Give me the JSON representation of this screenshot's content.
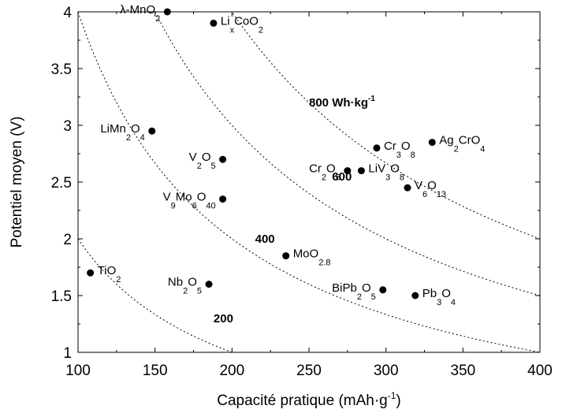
{
  "chart_data": {
    "type": "scatter",
    "xlabel": "Capacité pratique (mAh·g",
    "xlabel_sup": "-1",
    "xlabel_tail": ")",
    "ylabel": "Potentiel moyen (V)",
    "xlim": [
      100,
      400
    ],
    "ylim": [
      1,
      4
    ],
    "xticks": [
      100,
      150,
      200,
      250,
      300,
      350,
      400
    ],
    "yticks": [
      1,
      1.5,
      2,
      2.5,
      3,
      3.5,
      4
    ],
    "ytick_labels": [
      "1",
      "1.5",
      "2",
      "2.5",
      "3",
      "3.5",
      "4"
    ],
    "grid": false,
    "points": [
      {
        "x": 158,
        "y": 4.0,
        "segments": [
          [
            "λ-MnO",
            0
          ],
          [
            "2",
            1
          ]
        ],
        "anchor": "end"
      },
      {
        "x": 188,
        "y": 3.9,
        "segments": [
          [
            "Li",
            0
          ],
          [
            "x",
            1
          ],
          [
            "CoO",
            0
          ],
          [
            "2",
            1
          ]
        ],
        "anchor": "start"
      },
      {
        "x": 148,
        "y": 2.95,
        "segments": [
          [
            "LiMn",
            0
          ],
          [
            "2",
            1
          ],
          [
            "O",
            0
          ],
          [
            "4",
            1
          ]
        ],
        "anchor": "end"
      },
      {
        "x": 194,
        "y": 2.7,
        "segments": [
          [
            "V",
            0
          ],
          [
            "2",
            1
          ],
          [
            "O",
            0
          ],
          [
            "5",
            1
          ]
        ],
        "anchor": "end"
      },
      {
        "x": 194,
        "y": 2.35,
        "segments": [
          [
            "V",
            0
          ],
          [
            "9",
            1
          ],
          [
            "Mo",
            0
          ],
          [
            "6",
            1
          ],
          [
            "O",
            0
          ],
          [
            "40",
            1
          ]
        ],
        "anchor": "end"
      },
      {
        "x": 108,
        "y": 1.7,
        "segments": [
          [
            "TiO",
            0
          ],
          [
            "2",
            1
          ]
        ],
        "anchor": "start"
      },
      {
        "x": 185,
        "y": 1.6,
        "segments": [
          [
            "Nb",
            0
          ],
          [
            "2",
            1
          ],
          [
            "O",
            0
          ],
          [
            "5",
            1
          ]
        ],
        "anchor": "end"
      },
      {
        "x": 235,
        "y": 1.85,
        "segments": [
          [
            "MoO",
            0
          ],
          [
            "2.8",
            1
          ]
        ],
        "anchor": "start"
      },
      {
        "x": 275,
        "y": 2.6,
        "segments": [
          [
            "Cr",
            0
          ],
          [
            "2",
            1
          ],
          [
            "O",
            0
          ],
          [
            "5",
            1
          ]
        ],
        "anchor": "end"
      },
      {
        "x": 284,
        "y": 2.6,
        "segments": [
          [
            "LiV",
            0
          ],
          [
            "3",
            1
          ],
          [
            "O",
            0
          ],
          [
            "8",
            1
          ]
        ],
        "anchor": "start"
      },
      {
        "x": 294,
        "y": 2.8,
        "segments": [
          [
            "Cr",
            0
          ],
          [
            "3",
            1
          ],
          [
            "O",
            0
          ],
          [
            "8",
            1
          ]
        ],
        "anchor": "start"
      },
      {
        "x": 314,
        "y": 2.45,
        "segments": [
          [
            "V",
            0
          ],
          [
            "6",
            1
          ],
          [
            "O",
            0
          ],
          [
            "13",
            1
          ]
        ],
        "anchor": "start"
      },
      {
        "x": 330,
        "y": 2.85,
        "segments": [
          [
            "Ag",
            0
          ],
          [
            "2",
            1
          ],
          [
            "CrO",
            0
          ],
          [
            "4",
            1
          ]
        ],
        "anchor": "start"
      },
      {
        "x": 298,
        "y": 1.55,
        "segments": [
          [
            "BiPb",
            0
          ],
          [
            "2",
            1
          ],
          [
            "O",
            0
          ],
          [
            "5",
            1
          ]
        ],
        "anchor": "end"
      },
      {
        "x": 319,
        "y": 1.5,
        "segments": [
          [
            "Pb",
            0
          ],
          [
            "3",
            1
          ],
          [
            "O",
            0
          ],
          [
            "4",
            1
          ]
        ],
        "anchor": "start"
      }
    ],
    "energy_curves": [
      {
        "energy": 200,
        "label": "200",
        "label_at": [
          188,
          1.3
        ],
        "label_sup": ""
      },
      {
        "energy": 400,
        "label": "400",
        "label_at": [
          215,
          2.0
        ],
        "label_sup": ""
      },
      {
        "energy": 600,
        "label": "600",
        "label_at": [
          265,
          2.55
        ],
        "label_sup": ""
      },
      {
        "energy": 800,
        "label": "800 Wh·kg",
        "label_at": [
          250,
          3.2
        ],
        "label_sup": "-1"
      }
    ]
  }
}
